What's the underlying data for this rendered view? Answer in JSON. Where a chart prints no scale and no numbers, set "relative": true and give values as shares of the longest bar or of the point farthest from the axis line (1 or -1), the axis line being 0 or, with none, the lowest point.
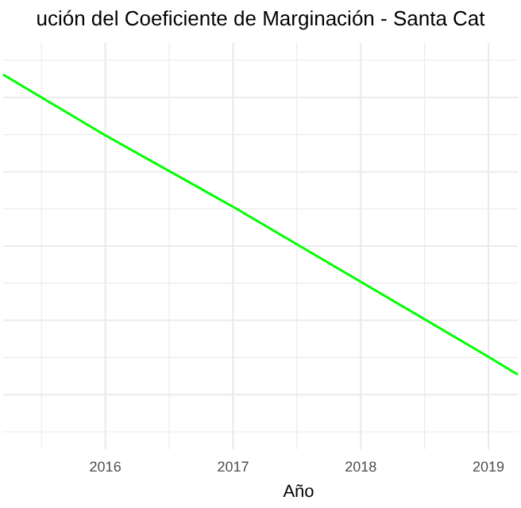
{
  "chart_data": {
    "type": "line",
    "title": "ución del Coeficiente de Marginación - Santa Cat",
    "xlabel": "Año",
    "relative": true,
    "x": [
      2015.2,
      2016,
      2017,
      2018,
      2019,
      2019.23
    ],
    "series": [
      {
        "color": "#00ff00",
        "values": [
          1,
          0.83,
          0.63,
          0.42,
          0.21,
          0.16
        ]
      }
    ],
    "xlim": [
      2015.2,
      2019.23
    ],
    "xticks": [
      2016,
      2017,
      2018,
      2019
    ],
    "grid": true
  }
}
